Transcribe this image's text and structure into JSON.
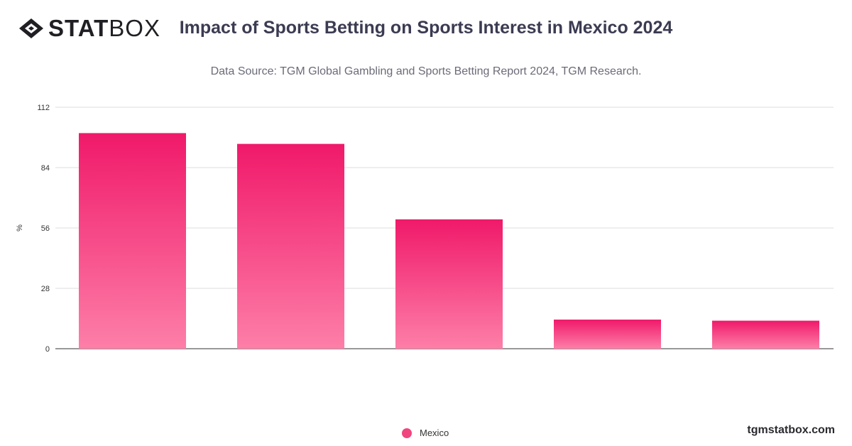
{
  "brand": {
    "logo_bold": "STAT",
    "logo_light": "BOX",
    "site": "tgmstatbox.com"
  },
  "chart_data": {
    "type": "bar",
    "title": "Impact of Sports Betting on Sports Interest in Mexico 2024",
    "subtitle": "Data Source: TGM Global Gambling and Sports Betting Report 2024, TGM Research.",
    "ylabel": "%",
    "xlabel": "",
    "ylim": [
      0,
      112
    ],
    "yticks": [
      0,
      28,
      56,
      84,
      112
    ],
    "grid": true,
    "legend_position": "bottom",
    "categories": [
      "",
      "",
      "",
      "",
      ""
    ],
    "series": [
      {
        "name": "Mexico",
        "values": [
          100,
          95,
          60,
          13.5,
          13
        ],
        "color": "#f0457f"
      }
    ],
    "colors": {
      "bar_top": "#f0196a",
      "bar_bottom": "#fd7fa8",
      "grid": "#dcdce0",
      "axis": "#333333"
    }
  }
}
